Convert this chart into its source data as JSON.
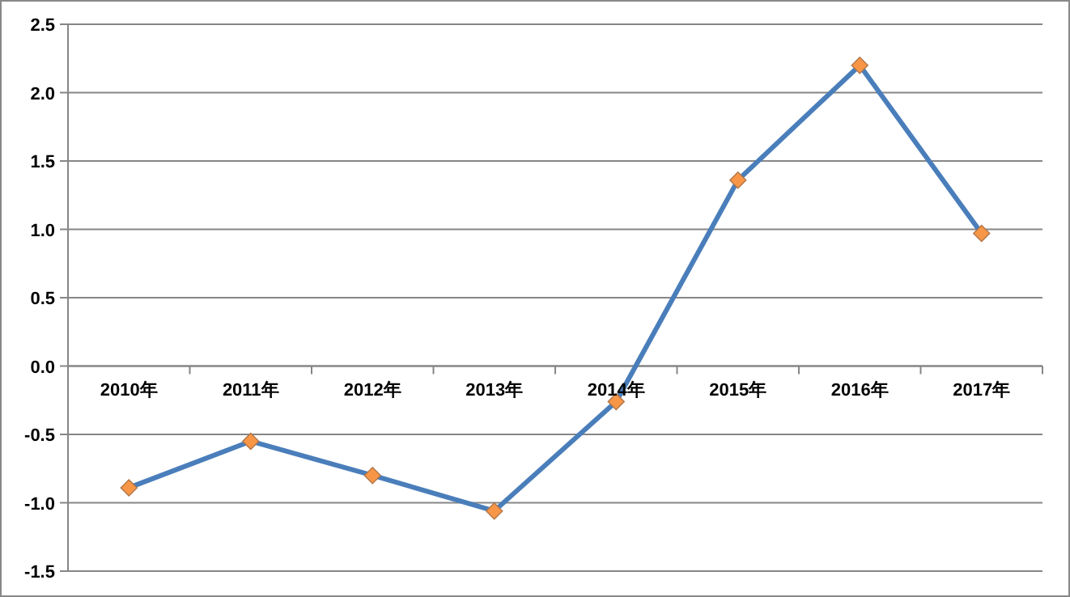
{
  "chart_data": {
    "type": "line",
    "categories": [
      "2010年",
      "2011年",
      "2012年",
      "2013年",
      "2014年",
      "2015年",
      "2016年",
      "2017年"
    ],
    "series": [
      {
        "color": "#4a7ebb",
        "colors": [
          "#f79646",
          "#f79646",
          "#f79646",
          "#f79646",
          "#f79646",
          "#f79646",
          "#f79646",
          "#f79646"
        ],
        "values": [
          -0.89,
          -0.55,
          -0.8,
          -1.06,
          -0.26,
          1.36,
          2.2,
          0.97
        ]
      }
    ],
    "ylim": [
      -1.5,
      2.5
    ],
    "yticks": [
      -1.5,
      {
        "value": -1,
        "label": "-1.0"
      },
      -0.5,
      {
        "value": 0,
        "label": "0.0"
      },
      0.5,
      {
        "value": 1,
        "label": "1.0"
      },
      1.5,
      {
        "value": 2,
        "label": "2.0"
      },
      2.5
    ],
    "grid": "y",
    "marker": "diamond",
    "line_style": "solid"
  }
}
